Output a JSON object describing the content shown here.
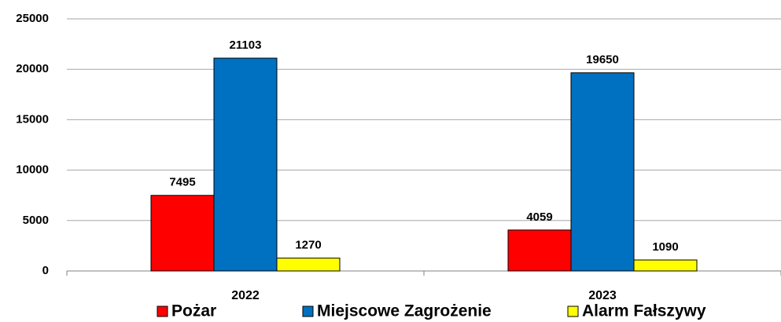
{
  "chart_data": {
    "type": "bar",
    "categories": [
      "2022",
      "2023"
    ],
    "series": [
      {
        "name": "Pożar",
        "color": "#ff0000",
        "values": [
          7495,
          4059
        ]
      },
      {
        "name": "Miejscowe Zagrożenie",
        "color": "#0070c0",
        "values": [
          21103,
          19650
        ]
      },
      {
        "name": "Alarm Fałszywy",
        "color": "#ffff00",
        "values": [
          1270,
          1090
        ]
      }
    ],
    "ylim": [
      0,
      25000
    ],
    "yticks": [
      0,
      5000,
      10000,
      15000,
      20000,
      25000
    ],
    "grid": true,
    "legend": "bottom"
  }
}
